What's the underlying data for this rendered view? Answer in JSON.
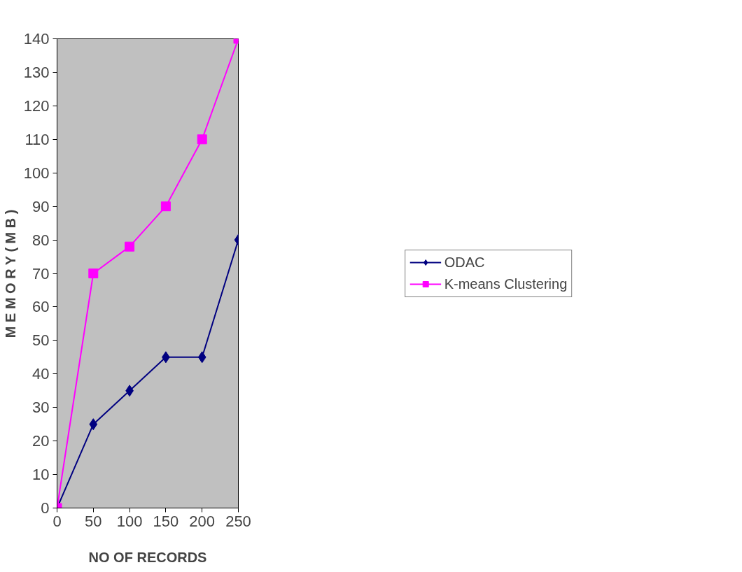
{
  "chart_data": {
    "type": "line",
    "xlabel": "NO OF RECORDS",
    "ylabel": "M E M O R Y ( M B )",
    "x": [
      0,
      50,
      100,
      150,
      200,
      250
    ],
    "series": [
      {
        "name": "ODAC",
        "color": "#000080",
        "marker": "diamond",
        "values": [
          0,
          25,
          35,
          45,
          45,
          80
        ]
      },
      {
        "name": "K-means Clustering",
        "color": "#ff00ff",
        "marker": "square",
        "values": [
          0,
          70,
          78,
          90,
          110,
          140
        ]
      }
    ],
    "xlim": [
      0,
      250
    ],
    "xticks": [
      0,
      50,
      100,
      150,
      200,
      250
    ],
    "ylim": [
      0,
      140
    ],
    "yticks": [
      0,
      10,
      20,
      30,
      40,
      50,
      60,
      70,
      80,
      90,
      100,
      110,
      120,
      130,
      140
    ],
    "grid": false,
    "legend": "right",
    "line_style": "solid"
  }
}
